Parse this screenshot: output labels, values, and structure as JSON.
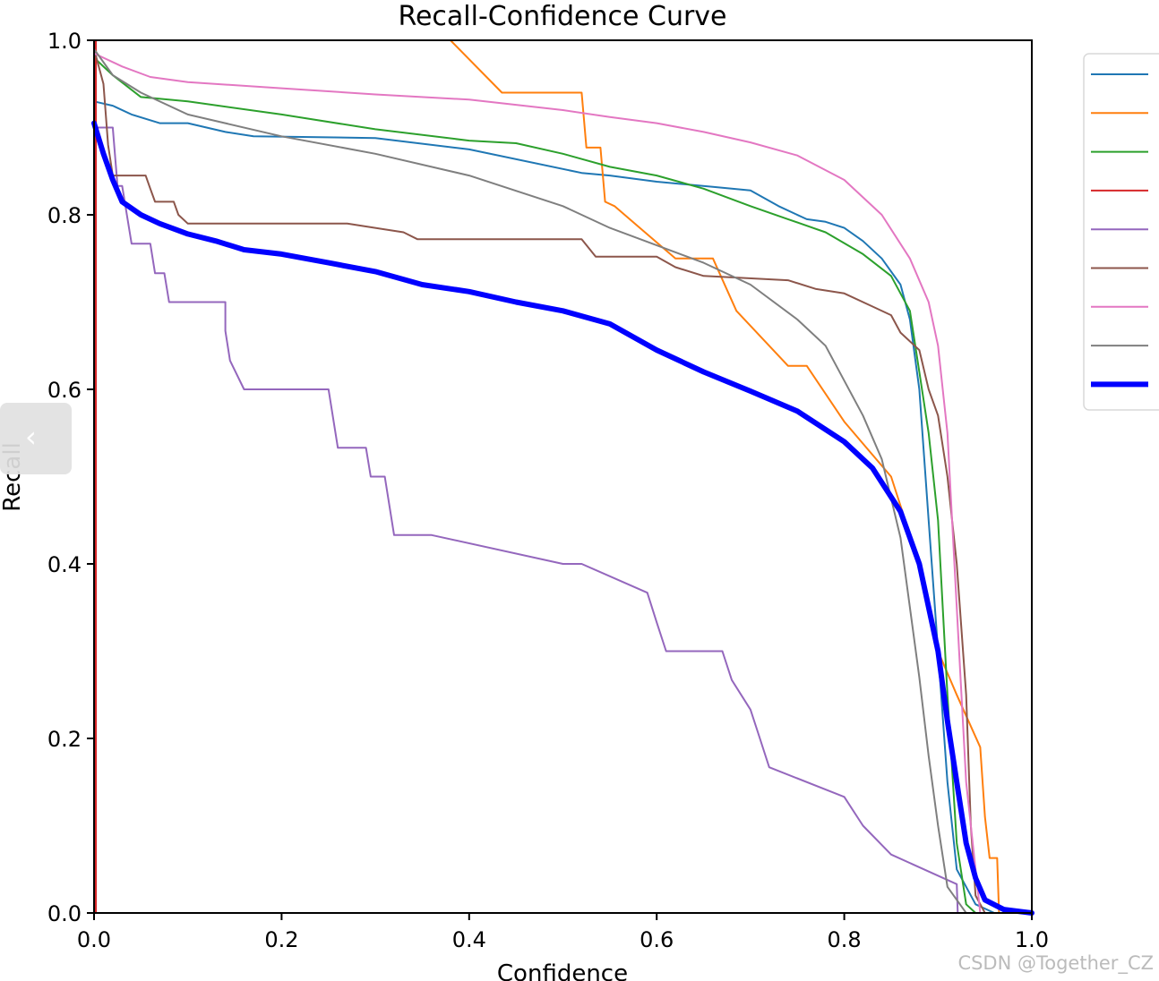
{
  "chart_data": {
    "type": "line",
    "title": "Recall-Confidence Curve",
    "xlabel": "Confidence",
    "ylabel": "Recall",
    "xlim": [
      0,
      1
    ],
    "ylim": [
      0,
      1
    ],
    "xticks": [
      "0.0",
      "0.2",
      "0.4",
      "0.6",
      "0.8",
      "1.0"
    ],
    "yticks": [
      "0.0",
      "0.2",
      "0.4",
      "0.6",
      "0.8",
      "1.0"
    ],
    "legend_position": "right-outside, clipped",
    "series": [
      {
        "name": "",
        "color": "#1f77b4",
        "width": 2,
        "points": [
          [
            0,
            0.93
          ],
          [
            0.02,
            0.925
          ],
          [
            0.04,
            0.915
          ],
          [
            0.07,
            0.905
          ],
          [
            0.1,
            0.905
          ],
          [
            0.14,
            0.895
          ],
          [
            0.17,
            0.89
          ],
          [
            0.3,
            0.888
          ],
          [
            0.4,
            0.875
          ],
          [
            0.52,
            0.848
          ],
          [
            0.55,
            0.845
          ],
          [
            0.6,
            0.838
          ],
          [
            0.66,
            0.832
          ],
          [
            0.7,
            0.828
          ],
          [
            0.73,
            0.81
          ],
          [
            0.76,
            0.795
          ],
          [
            0.78,
            0.792
          ],
          [
            0.8,
            0.785
          ],
          [
            0.82,
            0.77
          ],
          [
            0.84,
            0.75
          ],
          [
            0.86,
            0.72
          ],
          [
            0.87,
            0.68
          ],
          [
            0.88,
            0.6
          ],
          [
            0.89,
            0.45
          ],
          [
            0.9,
            0.3
          ],
          [
            0.91,
            0.15
          ],
          [
            0.92,
            0.05
          ],
          [
            0.94,
            0.01
          ],
          [
            0.96,
            0
          ]
        ]
      },
      {
        "name": "",
        "color": "#ff7f0e",
        "width": 2,
        "points": [
          [
            0.38,
            1.0
          ],
          [
            0.435,
            0.94
          ],
          [
            0.52,
            0.94
          ],
          [
            0.525,
            0.877
          ],
          [
            0.54,
            0.877
          ],
          [
            0.545,
            0.815
          ],
          [
            0.555,
            0.81
          ],
          [
            0.62,
            0.75
          ],
          [
            0.63,
            0.75
          ],
          [
            0.66,
            0.75
          ],
          [
            0.685,
            0.69
          ],
          [
            0.74,
            0.627
          ],
          [
            0.76,
            0.627
          ],
          [
            0.8,
            0.563
          ],
          [
            0.85,
            0.5
          ],
          [
            0.88,
            0.4
          ],
          [
            0.9,
            0.3
          ],
          [
            0.92,
            0.25
          ],
          [
            0.945,
            0.19
          ],
          [
            0.95,
            0.11
          ],
          [
            0.955,
            0.063
          ],
          [
            0.963,
            0.063
          ],
          [
            0.965,
            0
          ]
        ]
      },
      {
        "name": "",
        "color": "#2ca02c",
        "width": 2,
        "points": [
          [
            0,
            0.98
          ],
          [
            0.02,
            0.96
          ],
          [
            0.05,
            0.935
          ],
          [
            0.1,
            0.93
          ],
          [
            0.2,
            0.915
          ],
          [
            0.3,
            0.898
          ],
          [
            0.4,
            0.885
          ],
          [
            0.45,
            0.882
          ],
          [
            0.5,
            0.87
          ],
          [
            0.55,
            0.855
          ],
          [
            0.6,
            0.845
          ],
          [
            0.65,
            0.83
          ],
          [
            0.7,
            0.81
          ],
          [
            0.74,
            0.795
          ],
          [
            0.78,
            0.78
          ],
          [
            0.82,
            0.755
          ],
          [
            0.85,
            0.73
          ],
          [
            0.87,
            0.69
          ],
          [
            0.88,
            0.62
          ],
          [
            0.89,
            0.55
          ],
          [
            0.9,
            0.45
          ],
          [
            0.91,
            0.25
          ],
          [
            0.92,
            0.08
          ],
          [
            0.93,
            0.01
          ],
          [
            0.94,
            0
          ]
        ]
      },
      {
        "name": "",
        "color": "#d62728",
        "width": 2,
        "points": [
          [
            0.001,
            0
          ],
          [
            0.001,
            1.0
          ],
          [
            0.002,
            1.0
          ],
          [
            0.002,
            0
          ],
          [
            1,
            0
          ]
        ]
      },
      {
        "name": "",
        "color": "#9467bd",
        "width": 2,
        "points": [
          [
            0,
            0.9
          ],
          [
            0.02,
            0.9
          ],
          [
            0.025,
            0.833
          ],
          [
            0.03,
            0.833
          ],
          [
            0.04,
            0.767
          ],
          [
            0.06,
            0.767
          ],
          [
            0.065,
            0.733
          ],
          [
            0.075,
            0.733
          ],
          [
            0.08,
            0.7
          ],
          [
            0.14,
            0.7
          ],
          [
            0.14,
            0.667
          ],
          [
            0.145,
            0.633
          ],
          [
            0.16,
            0.6
          ],
          [
            0.25,
            0.6
          ],
          [
            0.26,
            0.533
          ],
          [
            0.29,
            0.533
          ],
          [
            0.295,
            0.5
          ],
          [
            0.31,
            0.5
          ],
          [
            0.32,
            0.433
          ],
          [
            0.36,
            0.433
          ],
          [
            0.5,
            0.4
          ],
          [
            0.52,
            0.4
          ],
          [
            0.59,
            0.367
          ],
          [
            0.6,
            0.333
          ],
          [
            0.61,
            0.3
          ],
          [
            0.67,
            0.3
          ],
          [
            0.68,
            0.267
          ],
          [
            0.7,
            0.233
          ],
          [
            0.71,
            0.2
          ],
          [
            0.72,
            0.167
          ],
          [
            0.8,
            0.133
          ],
          [
            0.82,
            0.1
          ],
          [
            0.85,
            0.067
          ],
          [
            0.92,
            0.033
          ],
          [
            0.921,
            0
          ]
        ]
      },
      {
        "name": "",
        "color": "#8c564b",
        "width": 2,
        "points": [
          [
            0,
            0.99
          ],
          [
            0.01,
            0.95
          ],
          [
            0.015,
            0.88
          ],
          [
            0.02,
            0.845
          ],
          [
            0.055,
            0.845
          ],
          [
            0.06,
            0.83
          ],
          [
            0.065,
            0.815
          ],
          [
            0.085,
            0.815
          ],
          [
            0.09,
            0.8
          ],
          [
            0.1,
            0.79
          ],
          [
            0.27,
            0.79
          ],
          [
            0.33,
            0.78
          ],
          [
            0.345,
            0.772
          ],
          [
            0.52,
            0.772
          ],
          [
            0.535,
            0.752
          ],
          [
            0.6,
            0.752
          ],
          [
            0.62,
            0.74
          ],
          [
            0.65,
            0.73
          ],
          [
            0.74,
            0.725
          ],
          [
            0.77,
            0.715
          ],
          [
            0.8,
            0.71
          ],
          [
            0.83,
            0.695
          ],
          [
            0.85,
            0.685
          ],
          [
            0.86,
            0.665
          ],
          [
            0.88,
            0.645
          ],
          [
            0.89,
            0.6
          ],
          [
            0.9,
            0.57
          ],
          [
            0.91,
            0.5
          ],
          [
            0.92,
            0.4
          ],
          [
            0.93,
            0.25
          ],
          [
            0.935,
            0.1
          ],
          [
            0.94,
            0.02
          ],
          [
            0.95,
            0
          ]
        ]
      },
      {
        "name": "",
        "color": "#e377c2",
        "width": 2,
        "points": [
          [
            0,
            0.985
          ],
          [
            0.03,
            0.97
          ],
          [
            0.06,
            0.958
          ],
          [
            0.1,
            0.952
          ],
          [
            0.2,
            0.945
          ],
          [
            0.3,
            0.938
          ],
          [
            0.4,
            0.932
          ],
          [
            0.5,
            0.92
          ],
          [
            0.55,
            0.912
          ],
          [
            0.6,
            0.905
          ],
          [
            0.65,
            0.895
          ],
          [
            0.7,
            0.883
          ],
          [
            0.75,
            0.868
          ],
          [
            0.8,
            0.84
          ],
          [
            0.84,
            0.8
          ],
          [
            0.87,
            0.75
          ],
          [
            0.89,
            0.7
          ],
          [
            0.9,
            0.65
          ],
          [
            0.91,
            0.55
          ],
          [
            0.92,
            0.35
          ],
          [
            0.93,
            0.15
          ],
          [
            0.94,
            0.05
          ],
          [
            0.945,
            0
          ]
        ]
      },
      {
        "name": "",
        "color": "#7f7f7f",
        "width": 2,
        "points": [
          [
            0,
            0.99
          ],
          [
            0.02,
            0.96
          ],
          [
            0.05,
            0.94
          ],
          [
            0.1,
            0.915
          ],
          [
            0.2,
            0.89
          ],
          [
            0.3,
            0.87
          ],
          [
            0.4,
            0.845
          ],
          [
            0.5,
            0.81
          ],
          [
            0.55,
            0.785
          ],
          [
            0.6,
            0.765
          ],
          [
            0.65,
            0.745
          ],
          [
            0.7,
            0.72
          ],
          [
            0.75,
            0.68
          ],
          [
            0.78,
            0.65
          ],
          [
            0.8,
            0.61
          ],
          [
            0.82,
            0.57
          ],
          [
            0.84,
            0.52
          ],
          [
            0.86,
            0.43
          ],
          [
            0.87,
            0.35
          ],
          [
            0.88,
            0.27
          ],
          [
            0.89,
            0.18
          ],
          [
            0.9,
            0.1
          ],
          [
            0.91,
            0.03
          ],
          [
            0.93,
            0
          ]
        ]
      },
      {
        "name": "",
        "color": "#0000ff",
        "width": 6,
        "points": [
          [
            0,
            0.905
          ],
          [
            0.01,
            0.87
          ],
          [
            0.02,
            0.84
          ],
          [
            0.03,
            0.815
          ],
          [
            0.05,
            0.8
          ],
          [
            0.07,
            0.79
          ],
          [
            0.1,
            0.778
          ],
          [
            0.13,
            0.77
          ],
          [
            0.16,
            0.76
          ],
          [
            0.2,
            0.755
          ],
          [
            0.25,
            0.745
          ],
          [
            0.3,
            0.735
          ],
          [
            0.35,
            0.72
          ],
          [
            0.4,
            0.712
          ],
          [
            0.45,
            0.7
          ],
          [
            0.5,
            0.69
          ],
          [
            0.55,
            0.675
          ],
          [
            0.6,
            0.645
          ],
          [
            0.65,
            0.62
          ],
          [
            0.7,
            0.598
          ],
          [
            0.75,
            0.575
          ],
          [
            0.8,
            0.54
          ],
          [
            0.83,
            0.51
          ],
          [
            0.86,
            0.46
          ],
          [
            0.88,
            0.4
          ],
          [
            0.9,
            0.3
          ],
          [
            0.91,
            0.22
          ],
          [
            0.92,
            0.15
          ],
          [
            0.93,
            0.08
          ],
          [
            0.94,
            0.04
          ],
          [
            0.95,
            0.015
          ],
          [
            0.97,
            0.004
          ],
          [
            1.0,
            0
          ]
        ]
      }
    ]
  },
  "watermark": "CSDN @Together_CZ",
  "nav": {
    "chevron": "‹"
  }
}
